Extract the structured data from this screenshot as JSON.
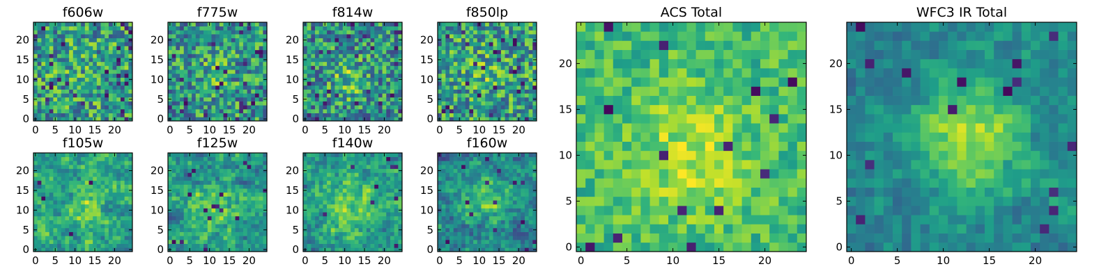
{
  "figure": {
    "colormap": "viridis",
    "background": "#ffffff"
  },
  "chart_data": [
    {
      "type": "heatmap",
      "title": "f606w",
      "grid": [
        25,
        25
      ],
      "xlim": [
        0,
        24
      ],
      "ylim": [
        0,
        24
      ],
      "xticks": [
        0,
        5,
        10,
        15,
        20
      ],
      "yticks": [
        0,
        5,
        10,
        15,
        20
      ],
      "noise": 0.32,
      "peak": 0.05,
      "center": [
        12,
        12
      ],
      "sigma": 5,
      "base": 0.55,
      "clump": 0.0,
      "darkRate": 0.045,
      "seed": 11
    },
    {
      "type": "heatmap",
      "title": "f775w",
      "grid": [
        25,
        25
      ],
      "xlim": [
        0,
        24
      ],
      "ylim": [
        0,
        24
      ],
      "xticks": [
        0,
        5,
        10,
        15,
        20
      ],
      "yticks": [
        0,
        5,
        10,
        15,
        20
      ],
      "noise": 0.32,
      "peak": 0.12,
      "center": [
        11,
        11
      ],
      "sigma": 4,
      "base": 0.52,
      "clump": 0.0,
      "darkRate": 0.045,
      "seed": 23
    },
    {
      "type": "heatmap",
      "title": "f814w",
      "grid": [
        25,
        25
      ],
      "xlim": [
        0,
        24
      ],
      "ylim": [
        0,
        24
      ],
      "xticks": [
        0,
        5,
        10,
        15,
        20
      ],
      "yticks": [
        0,
        5,
        10,
        15,
        20
      ],
      "noise": 0.32,
      "peak": 0.2,
      "center": [
        11,
        10
      ],
      "sigma": 3.5,
      "base": 0.5,
      "clump": 0.0,
      "darkRate": 0.04,
      "seed": 37
    },
    {
      "type": "heatmap",
      "title": "f850lp",
      "grid": [
        25,
        25
      ],
      "xlim": [
        0,
        24
      ],
      "ylim": [
        0,
        24
      ],
      "xticks": [
        0,
        5,
        10,
        15,
        20
      ],
      "yticks": [
        0,
        5,
        10,
        15,
        20
      ],
      "noise": 0.32,
      "peak": 0.1,
      "center": [
        12,
        11
      ],
      "sigma": 4,
      "base": 0.55,
      "clump": 0.0,
      "darkRate": 0.045,
      "seed": 41
    },
    {
      "type": "heatmap",
      "title": "f105w",
      "grid": [
        25,
        25
      ],
      "xlim": [
        0,
        24
      ],
      "ylim": [
        0,
        24
      ],
      "xticks": [
        0,
        5,
        10,
        15,
        20
      ],
      "yticks": [
        0,
        5,
        10,
        15,
        20
      ],
      "noise": 0.14,
      "peak": 0.18,
      "center": [
        13,
        11
      ],
      "sigma": 4,
      "base": 0.58,
      "clump": 0.22,
      "darkRate": 0.02,
      "seed": 53
    },
    {
      "type": "heatmap",
      "title": "f125w",
      "grid": [
        25,
        25
      ],
      "xlim": [
        0,
        24
      ],
      "ylim": [
        0,
        24
      ],
      "xticks": [
        0,
        5,
        10,
        15,
        20
      ],
      "yticks": [
        0,
        5,
        10,
        15,
        20
      ],
      "noise": 0.14,
      "peak": 0.22,
      "center": [
        12,
        10
      ],
      "sigma": 4,
      "base": 0.55,
      "clump": 0.22,
      "darkRate": 0.02,
      "seed": 67
    },
    {
      "type": "heatmap",
      "title": "f140w",
      "grid": [
        25,
        25
      ],
      "xlim": [
        0,
        24
      ],
      "ylim": [
        0,
        24
      ],
      "xticks": [
        0,
        5,
        10,
        15,
        20
      ],
      "yticks": [
        0,
        5,
        10,
        15,
        20
      ],
      "noise": 0.14,
      "peak": 0.25,
      "center": [
        12,
        10
      ],
      "sigma": 4.5,
      "base": 0.55,
      "clump": 0.22,
      "darkRate": 0.02,
      "seed": 79
    },
    {
      "type": "heatmap",
      "title": "f160w",
      "grid": [
        25,
        25
      ],
      "xlim": [
        0,
        24
      ],
      "ylim": [
        0,
        24
      ],
      "xticks": [
        0,
        5,
        10,
        15,
        20
      ],
      "yticks": [
        0,
        5,
        10,
        15,
        20
      ],
      "noise": 0.14,
      "peak": 0.28,
      "center": [
        11,
        12
      ],
      "sigma": 4.5,
      "base": 0.45,
      "clump": 0.22,
      "darkRate": 0.02,
      "seed": 83
    },
    {
      "type": "heatmap",
      "title": "ACS Total",
      "grid": [
        25,
        25
      ],
      "xlim": [
        0,
        24
      ],
      "ylim": [
        0,
        24
      ],
      "xticks": [
        0,
        5,
        10,
        15,
        20
      ],
      "yticks": [
        0,
        5,
        10,
        15,
        20
      ],
      "noise": 0.16,
      "peak": 0.22,
      "center": [
        12,
        10
      ],
      "sigma": 4.5,
      "base": 0.68,
      "clump": 0.0,
      "darkRate": 0.025,
      "seed": 97
    },
    {
      "type": "heatmap",
      "title": "WFC3 IR Total",
      "grid": [
        25,
        25
      ],
      "xlim": [
        0,
        24
      ],
      "ylim": [
        0,
        24
      ],
      "xticks": [
        0,
        5,
        10,
        15,
        20
      ],
      "yticks": [
        0,
        5,
        10,
        15,
        20
      ],
      "noise": 0.1,
      "peak": 0.42,
      "center": [
        13,
        12
      ],
      "sigma": 4.5,
      "base": 0.45,
      "clump": 0.12,
      "darkRate": 0.015,
      "seed": 109
    }
  ]
}
